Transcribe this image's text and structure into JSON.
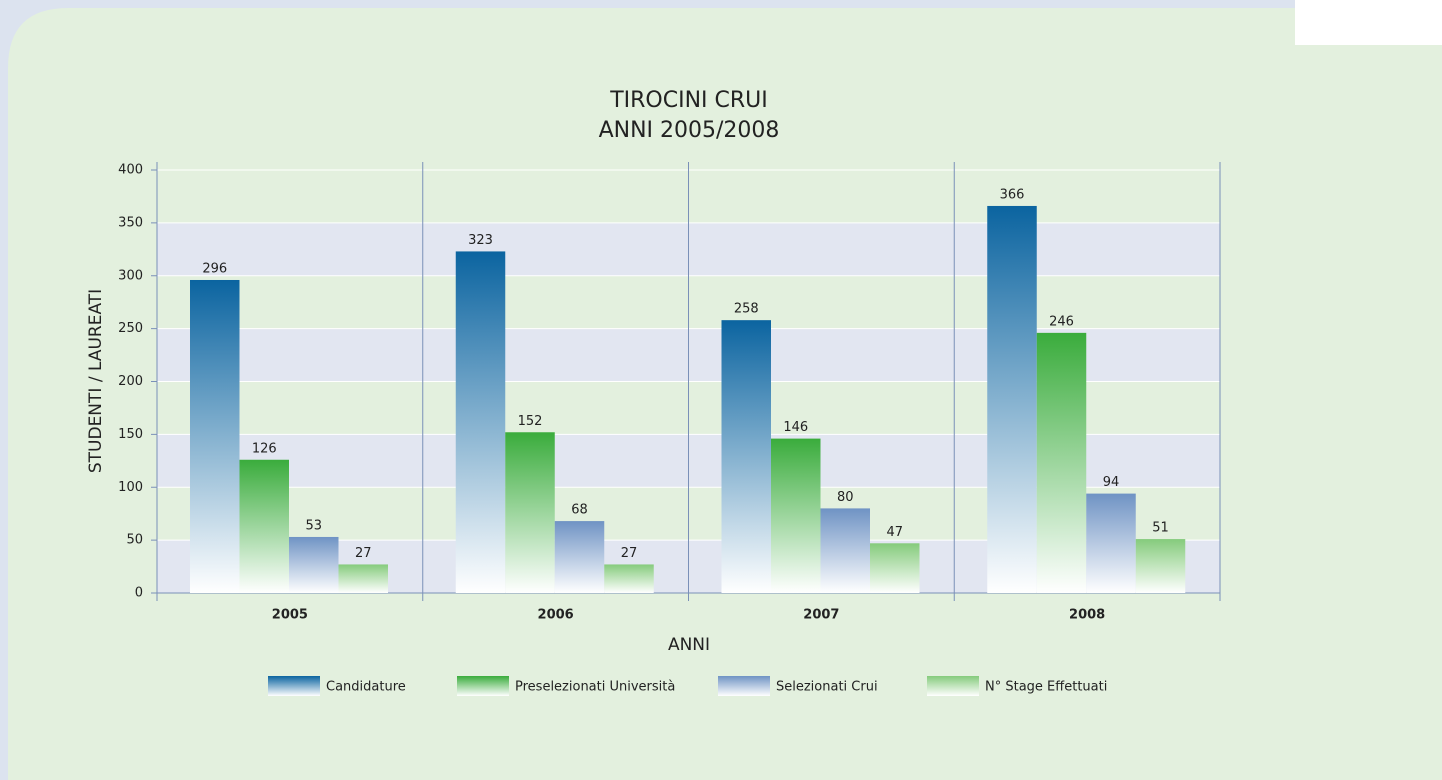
{
  "chart_data": {
    "type": "bar",
    "title": "TIROCINI CRUI",
    "subtitle": "ANNI 2005/2008",
    "x_label": "ANNI",
    "y_label": "STUDENTI / LAUREATI",
    "categories": [
      "2005",
      "2006",
      "2007",
      "2008"
    ],
    "series": [
      {
        "name": "Candidature",
        "color": "#0b64a0",
        "values": [
          296,
          323,
          258,
          366
        ]
      },
      {
        "name": "Preselezionati Università",
        "color": "#3aac3c",
        "values": [
          126,
          152,
          146,
          246
        ]
      },
      {
        "name": "Selezionati Crui",
        "color": "#6f93c4",
        "values": [
          53,
          68,
          80,
          94
        ]
      },
      {
        "name": "N° Stage Effettuati",
        "color": "#85cb7c",
        "values": [
          27,
          27,
          47,
          51
        ]
      }
    ],
    "ylim": [
      0,
      400
    ],
    "yticks": [
      0,
      50,
      100,
      150,
      200,
      250,
      300,
      350,
      400
    ],
    "legend": "bottom"
  }
}
